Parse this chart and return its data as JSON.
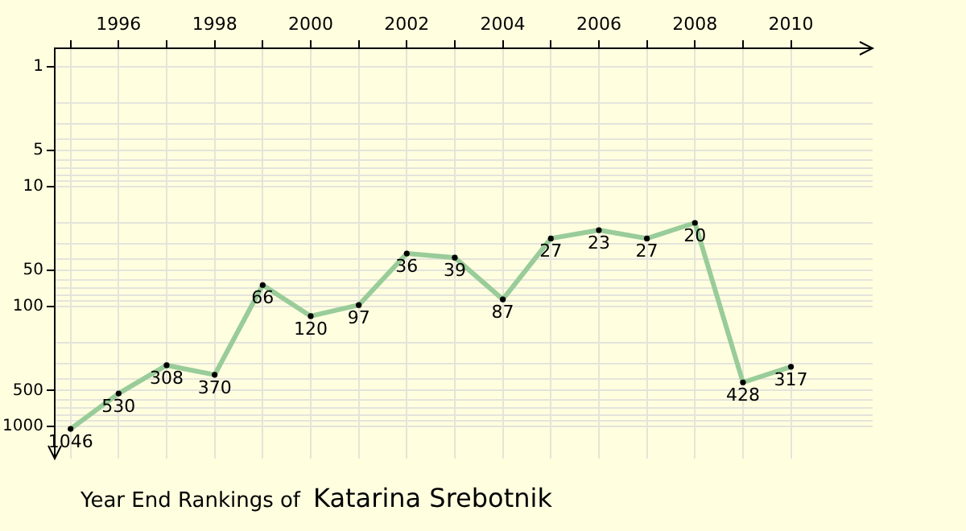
{
  "chart_data": {
    "type": "line",
    "title": "Year End Rankings of",
    "subtitle": "Katarina Srebotnik",
    "x": [
      1995,
      1996,
      1997,
      1998,
      1999,
      2000,
      2001,
      2002,
      2003,
      2004,
      2005,
      2006,
      2007,
      2008,
      2009,
      2010
    ],
    "series": [
      {
        "color": "#99cc99",
        "values": [
          1046,
          530,
          308,
          370,
          66,
          120,
          97,
          36,
          39,
          87,
          27,
          23,
          27,
          20,
          428,
          317
        ]
      }
    ],
    "xlim": [
      1994.67,
      2011.7
    ],
    "xticks": [
      {
        "value": 1995,
        "label": null
      },
      1996,
      {
        "value": 1997,
        "label": null
      },
      1998,
      {
        "value": 1999,
        "label": null
      },
      2000,
      {
        "value": 2001,
        "label": null
      },
      2002,
      {
        "value": 2003,
        "label": null
      },
      2004,
      {
        "value": 2005,
        "label": null
      },
      2006,
      {
        "value": 2007,
        "label": null
      },
      2008,
      {
        "value": 2009,
        "label": null
      },
      2010
    ],
    "ylim": [
      1850,
      0.74
    ],
    "yticks": [
      1,
      {
        "value": 2,
        "label": null
      },
      {
        "value": 3,
        "label": null
      },
      {
        "value": 4,
        "label": null
      },
      5,
      {
        "value": 6,
        "label": null
      },
      {
        "value": 7,
        "label": null
      },
      {
        "value": 8,
        "label": null
      },
      {
        "value": 9,
        "label": null
      },
      10,
      {
        "value": 20,
        "label": null
      },
      {
        "value": 30,
        "label": null
      },
      {
        "value": 40,
        "label": null
      },
      50,
      {
        "value": 60,
        "label": null
      },
      {
        "value": 70,
        "label": null
      },
      {
        "value": 80,
        "label": null
      },
      {
        "value": 90,
        "label": null
      },
      100,
      {
        "value": 200,
        "label": null
      },
      {
        "value": 300,
        "label": null
      },
      {
        "value": 400,
        "label": null
      },
      500,
      {
        "value": 600,
        "label": null
      },
      {
        "value": 700,
        "label": null
      },
      {
        "value": 800,
        "label": null
      },
      {
        "value": 900,
        "label": null
      },
      1000
    ],
    "log": "y",
    "grid": true,
    "legend": false,
    "marker": "circle",
    "line_style": "solid",
    "data_labels": true
  }
}
